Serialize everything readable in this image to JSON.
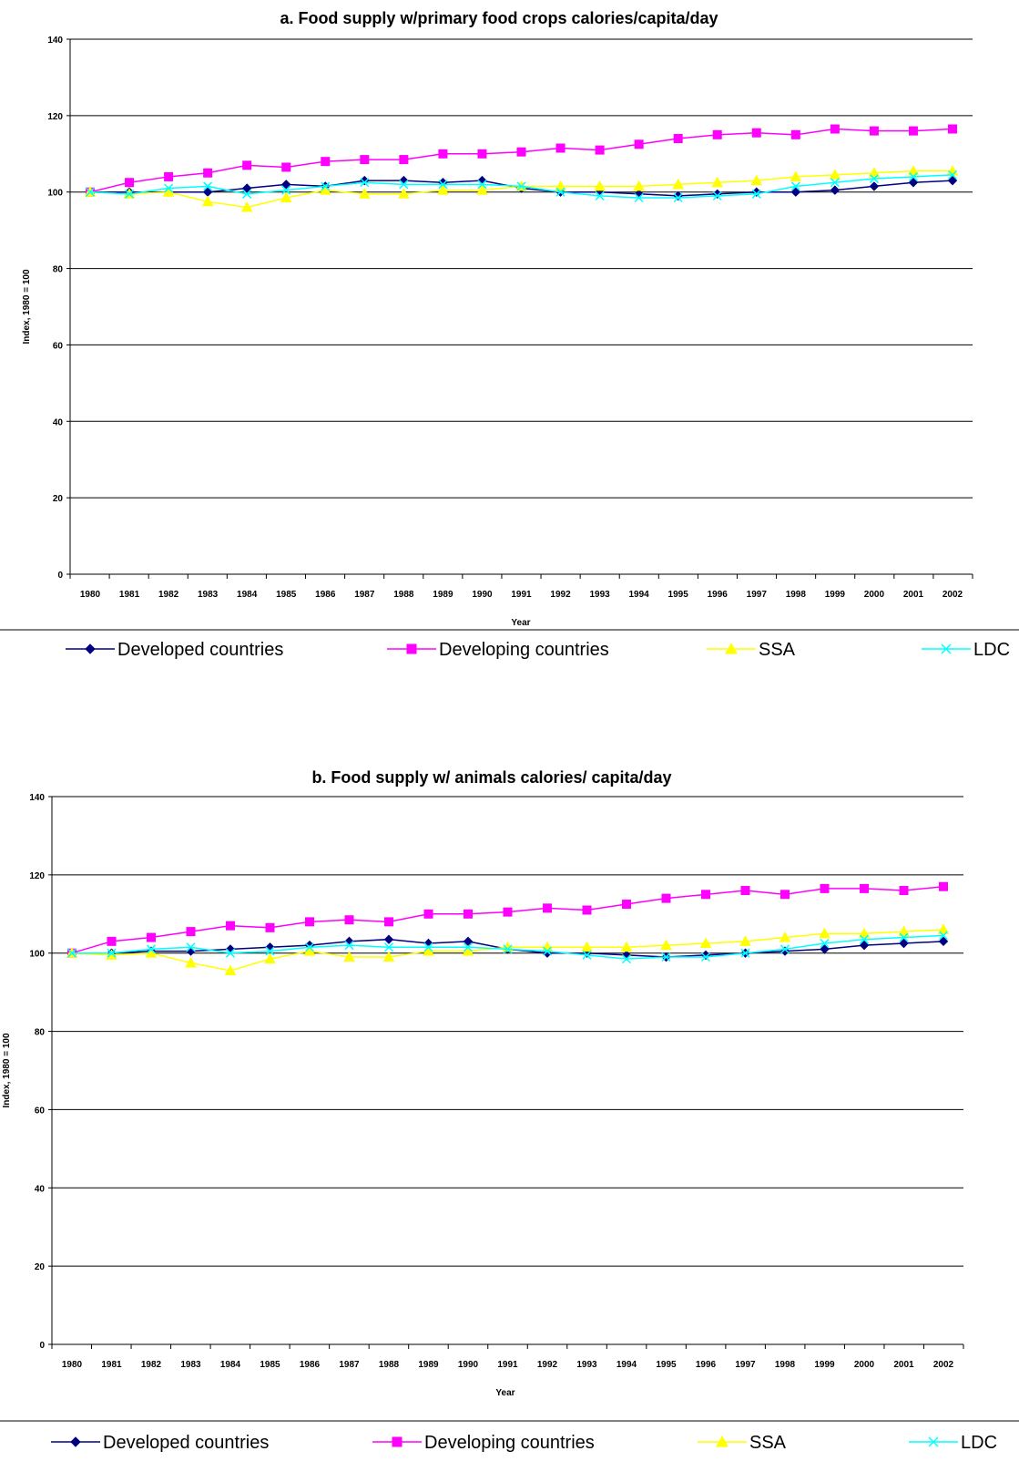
{
  "chart_data": [
    {
      "type": "line",
      "title": "a. Food supply w/primary food crops calories/capita/day",
      "xlabel": "Year",
      "ylabel": "Index, 1980 = 100",
      "ylim": [
        0,
        140
      ],
      "yticks": [
        0,
        20,
        40,
        60,
        80,
        100,
        120,
        140
      ],
      "grid": true,
      "legend_position": "bottom",
      "x": [
        "1980",
        "1981",
        "1982",
        "1983",
        "1984",
        "1985",
        "1986",
        "1987",
        "1988",
        "1989",
        "1990",
        "1991",
        "1992",
        "1993",
        "1994",
        "1995",
        "1996",
        "1997",
        "1998",
        "1999",
        "2000",
        "2001",
        "2002"
      ],
      "series": [
        {
          "name": "Developed countries",
          "color": "#000080",
          "marker": "diamond",
          "values": [
            100,
            100,
            100,
            100,
            101,
            102,
            101.5,
            103,
            103,
            102.5,
            103,
            101,
            100,
            100,
            99.5,
            99,
            99.5,
            100,
            100,
            100.5,
            101.5,
            102.5,
            103
          ]
        },
        {
          "name": "Developing countries",
          "color": "#ff00ff",
          "marker": "square",
          "values": [
            100,
            102.5,
            104,
            105,
            107,
            106.5,
            108,
            108.5,
            108.5,
            110,
            110,
            110.5,
            111.5,
            111,
            112.5,
            114,
            115,
            115.5,
            115,
            116.5,
            116,
            116,
            116.5
          ]
        },
        {
          "name": "SSA",
          "color": "#ffff00",
          "marker": "triangle",
          "values": [
            100,
            99.5,
            100,
            97.5,
            96,
            98.5,
            100.5,
            99.5,
            99.5,
            100.5,
            100.5,
            101.5,
            101.5,
            101.5,
            101.5,
            102,
            102.5,
            103,
            104,
            104.5,
            105,
            105.5,
            105.5
          ]
        },
        {
          "name": "LDC",
          "color": "#00ffff",
          "marker": "x",
          "values": [
            100,
            99.5,
            101,
            101.5,
            99.5,
            100.5,
            101.5,
            102.5,
            102,
            102,
            102,
            101.5,
            100,
            99,
            98.5,
            98.5,
            99,
            99.5,
            101.5,
            102.5,
            103.5,
            104,
            104.5
          ]
        }
      ]
    },
    {
      "type": "line",
      "title": "b. Food supply w/ animals calories/ capita/day",
      "xlabel": "Year",
      "ylabel": "Index, 1980 = 100",
      "ylim": [
        0,
        140
      ],
      "yticks": [
        0,
        20,
        40,
        60,
        80,
        100,
        120,
        140
      ],
      "grid": true,
      "legend_position": "bottom",
      "x": [
        "1980",
        "1981",
        "1982",
        "1983",
        "1984",
        "1985",
        "1986",
        "1987",
        "1988",
        "1989",
        "1990",
        "1991",
        "1992",
        "1993",
        "1994",
        "1995",
        "1996",
        "1997",
        "1998",
        "1999",
        "2000",
        "2001",
        "2002"
      ],
      "series": [
        {
          "name": "Developed countries",
          "color": "#000080",
          "marker": "diamond",
          "values": [
            100,
            100,
            100.5,
            100.5,
            101,
            101.5,
            102,
            103,
            103.5,
            102.5,
            103,
            101,
            100,
            100,
            99.5,
            99,
            99.5,
            100,
            100.5,
            101,
            102,
            102.5,
            103
          ]
        },
        {
          "name": "Developing countries",
          "color": "#ff00ff",
          "marker": "square",
          "values": [
            100,
            103,
            104,
            105.5,
            107,
            106.5,
            108,
            108.5,
            108,
            110,
            110,
            110.5,
            111.5,
            111,
            112.5,
            114,
            115,
            116,
            115,
            116.5,
            116.5,
            116,
            117
          ]
        },
        {
          "name": "SSA",
          "color": "#ffff00",
          "marker": "triangle",
          "values": [
            100,
            99.5,
            100,
            97.5,
            95.5,
            98.5,
            100.5,
            99,
            99,
            100.5,
            100.5,
            101.5,
            101.5,
            101.5,
            101.5,
            102,
            102.5,
            103,
            104,
            105,
            105,
            105.5,
            106
          ]
        },
        {
          "name": "LDC",
          "color": "#00ffff",
          "marker": "x",
          "values": [
            100,
            100,
            101,
            101.5,
            100,
            100.5,
            101.5,
            102,
            101.5,
            101.5,
            101.5,
            101,
            100.5,
            99.5,
            98.5,
            99,
            99,
            100,
            101,
            102.5,
            103.5,
            104,
            104.5
          ]
        }
      ]
    }
  ]
}
